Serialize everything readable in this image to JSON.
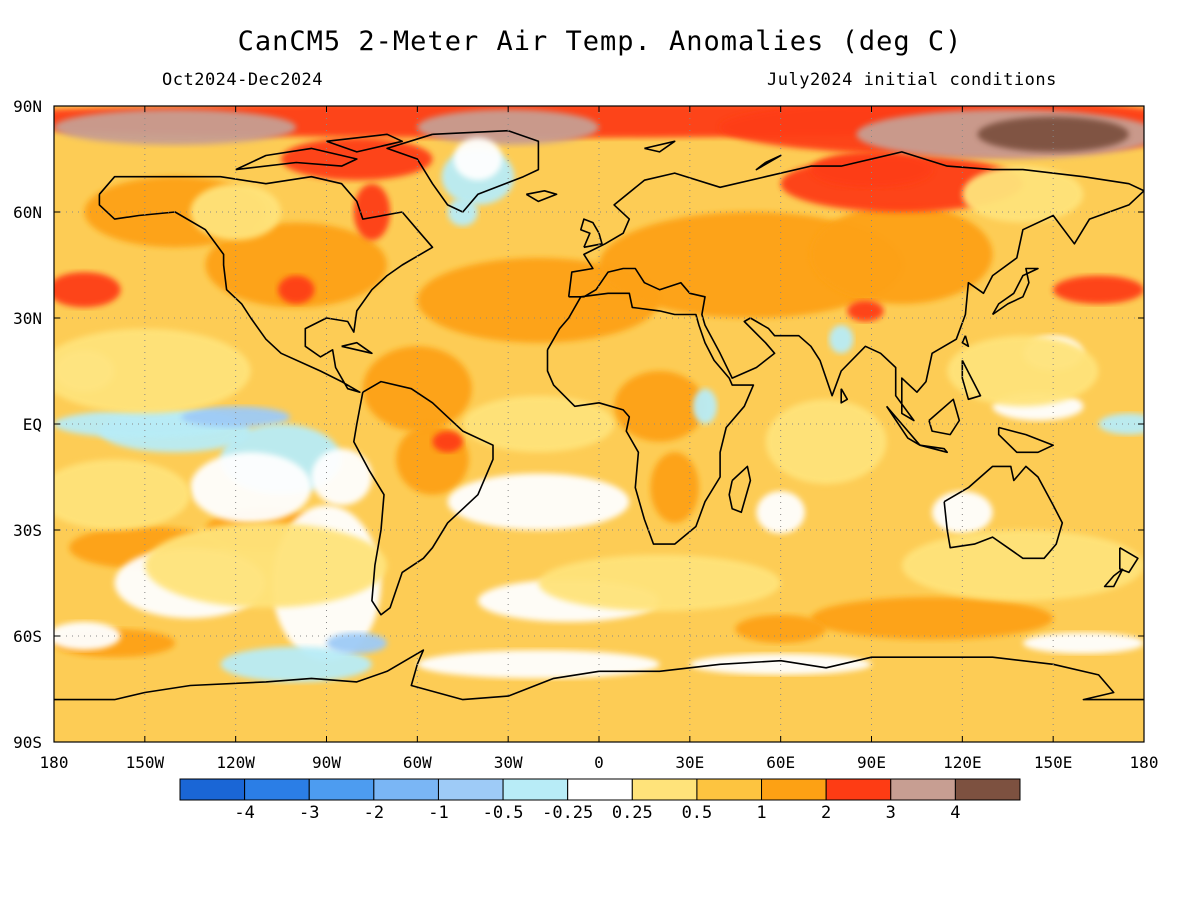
{
  "title": "CanCM5 2-Meter Air Temp. Anomalies (deg C)",
  "subtitle_left": "Oct2024-Dec2024",
  "subtitle_right": "July2024 initial conditions",
  "map": {
    "lon_range": [
      -180,
      180
    ],
    "lat_range": [
      -90,
      90
    ],
    "lat_labels": [
      "90N",
      "60N",
      "30N",
      "EQ",
      "30S",
      "60S",
      "90S"
    ],
    "lat_values": [
      90,
      60,
      30,
      0,
      -30,
      -60,
      -90
    ],
    "lon_labels": [
      "180",
      "150W",
      "120W",
      "90W",
      "60W",
      "30W",
      "0",
      "30E",
      "60E",
      "90E",
      "120E",
      "150E",
      "180"
    ],
    "lon_values": [
      -180,
      -150,
      -120,
      -90,
      -60,
      -30,
      0,
      30,
      60,
      90,
      120,
      150,
      180
    ],
    "grid": "dotted",
    "background_color": "#fdcc55"
  },
  "colorbar": {
    "colors": [
      "#1a66d6",
      "#2b7ee6",
      "#4d9cf0",
      "#7ab6f5",
      "#9ecbf7",
      "#b8ecf7",
      "#ffffff",
      "#ffe37a",
      "#fdc440",
      "#fda114",
      "#fe3c14",
      "#c79e92",
      "#7d5140"
    ],
    "labels": [
      "-4",
      "-3",
      "-2",
      "-1",
      "-0.5",
      "-0.25",
      "0.25",
      "0.5",
      "1",
      "2",
      "3",
      "4"
    ]
  }
}
